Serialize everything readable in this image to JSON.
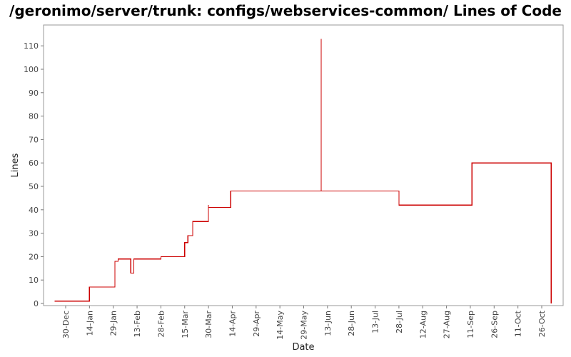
{
  "chart_data": {
    "type": "line",
    "title": "/geronimo/server/trunk: configs/webservices-common/ Lines of Code",
    "xlabel": "Date",
    "ylabel": "Lines",
    "x_tick_labels": [
      "30-Dec",
      "14-Jan",
      "29-Jan",
      "13-Feb",
      "28-Feb",
      "15-Mar",
      "30-Mar",
      "14-Apr",
      "29-Apr",
      "14-May",
      "29-May",
      "13-Jun",
      "28-Jun",
      "13-Jul",
      "28-Jul",
      "12-Aug",
      "27-Aug",
      "11-Sep",
      "26-Sep",
      "11-Oct",
      "26-Oct"
    ],
    "y_ticks": [
      0,
      10,
      20,
      30,
      40,
      50,
      60,
      70,
      80,
      90,
      100,
      110
    ],
    "ylim": [
      0,
      118
    ],
    "xlim": [
      "23-Dec",
      "1-Nov"
    ],
    "grid": false,
    "series": [
      {
        "color": "#cc0000",
        "step": true,
        "x": [
          "23-Dec",
          "14-Jan",
          "30-Jan",
          "1-Feb",
          "9-Feb",
          "11-Feb",
          "28-Feb",
          "15-Mar",
          "17-Mar",
          "20-Mar",
          "30-Mar",
          "30-Mar",
          "13-Apr",
          "9-Jun",
          "9-Jun",
          "9-Jun",
          "28-Jul",
          "12-Sep",
          "1-Nov",
          "1-Nov"
        ],
        "values": [
          1,
          7,
          18,
          19,
          13,
          19,
          20,
          26,
          29,
          35,
          42,
          41,
          48,
          48,
          113,
          48,
          42,
          60,
          60,
          0
        ]
      }
    ]
  }
}
